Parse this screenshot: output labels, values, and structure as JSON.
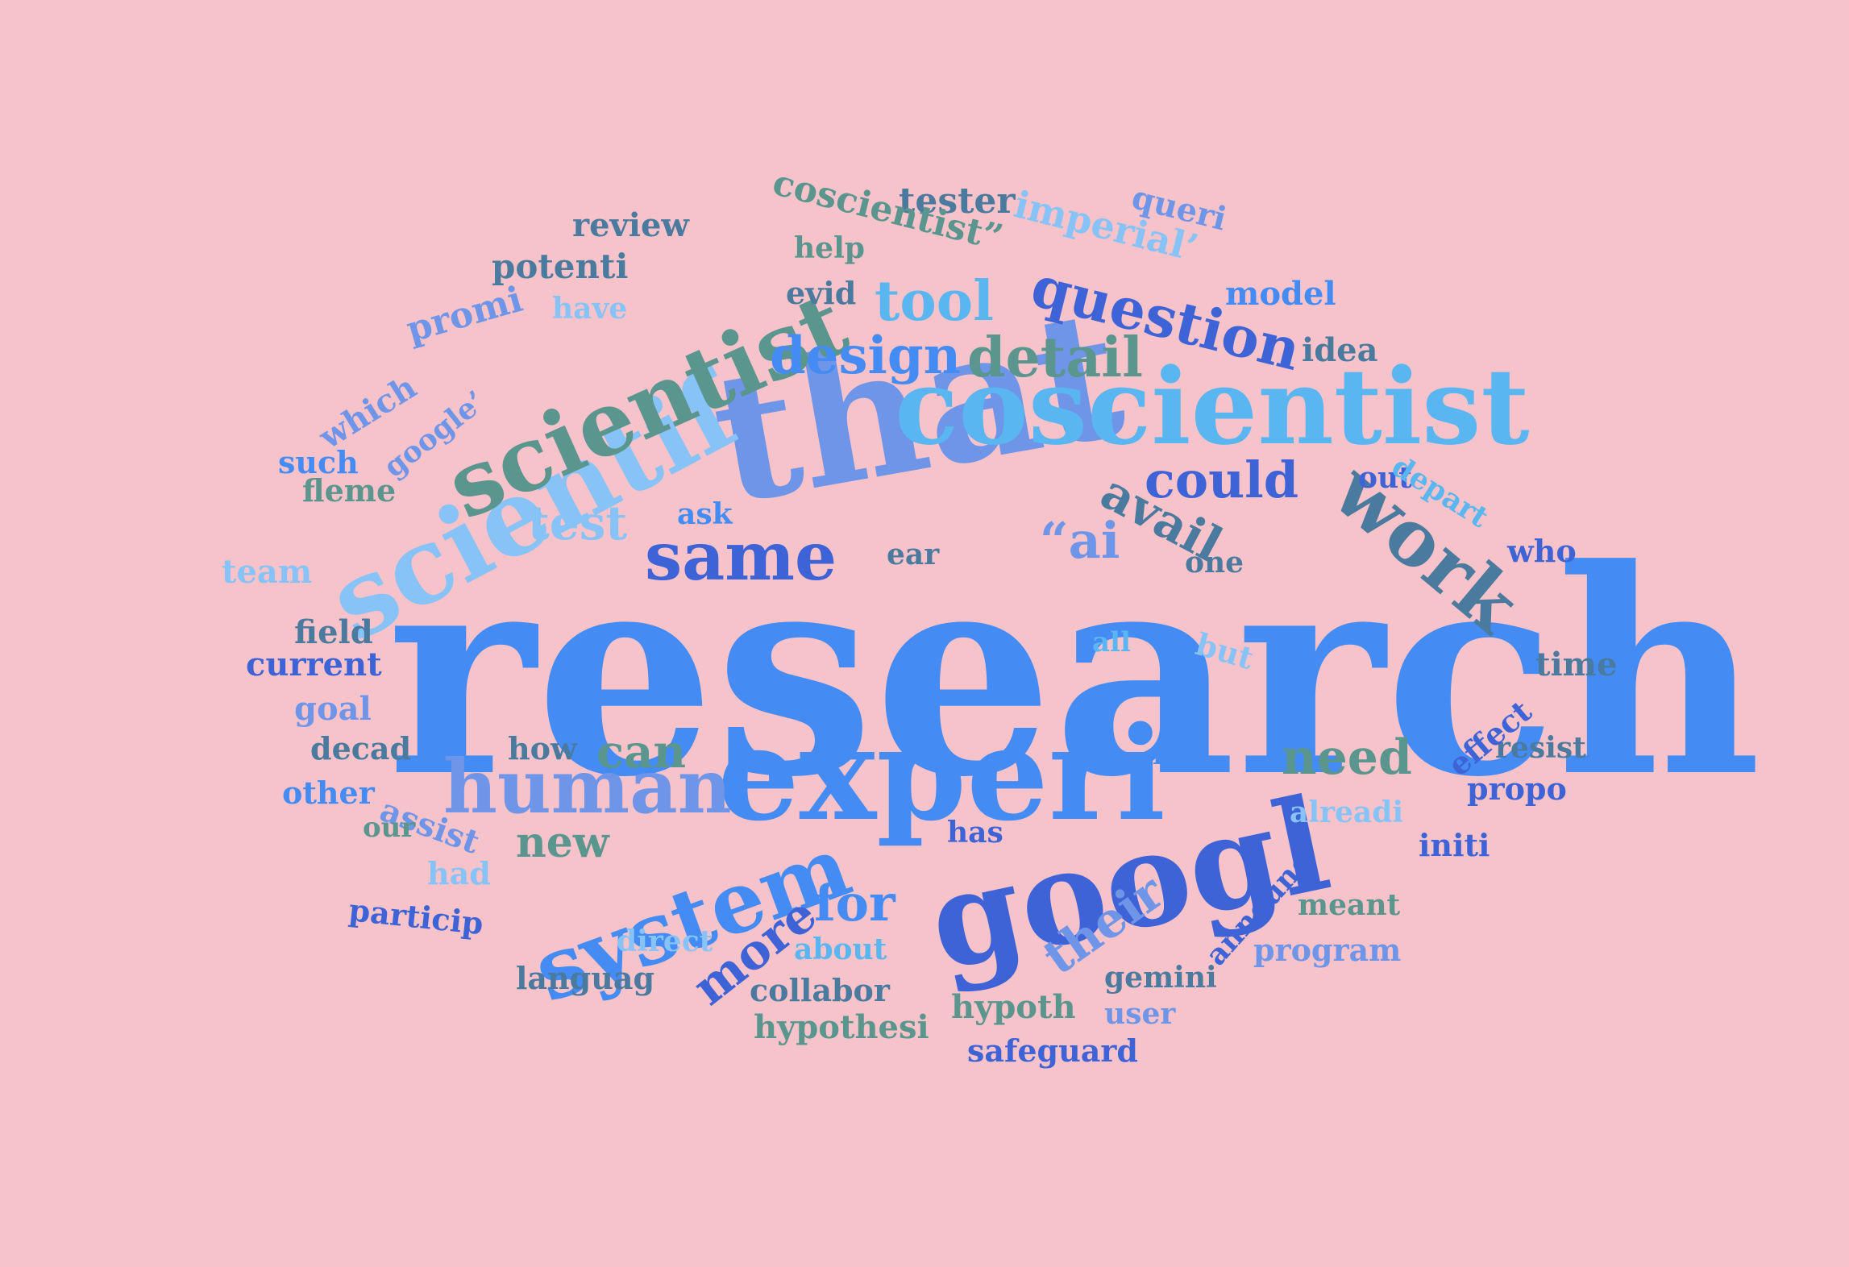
{
  "palette": {
    "background": "#f6c3cb",
    "blue": "#448cf4",
    "light_blue": "#5ab6f0",
    "pale_blue": "#a2cff8",
    "sky": "#87c3f6",
    "royal": "#3e63d6",
    "periwinkle": "#6f95e8",
    "teal": "#5a958e",
    "slate": "#4a7a9e"
  },
  "words": [
    "research",
    "that",
    "experi",
    "googl",
    "coscientist",
    "scientif",
    "scientist",
    "system",
    "human",
    "work",
    "same",
    "question",
    "detail",
    "design",
    "tool",
    "could",
    "avail",
    "“ai",
    "more",
    "their",
    "need",
    "for",
    "can",
    "new",
    "test",
    "tester",
    "imperial’",
    "coscientist”",
    "review",
    "potenti",
    "promi",
    "which",
    "google’",
    "such",
    "fleme",
    "team",
    "current",
    "field",
    "goal",
    "decad",
    "how",
    "other",
    "assist",
    "our",
    "had",
    "particip",
    "languag",
    "direct",
    "about",
    "collabor",
    "hypothesi",
    "hypoth",
    "gemini",
    "program",
    "meant",
    "alreadi",
    "announc",
    "propo",
    "initi",
    "resist",
    "time",
    "effect",
    "who",
    "one",
    "it’",
    "out",
    "depart",
    "idea",
    "model",
    "queri",
    "evid",
    "help",
    "have",
    "ear",
    "ask",
    "all",
    "but",
    "has",
    "safeguard",
    "user"
  ]
}
